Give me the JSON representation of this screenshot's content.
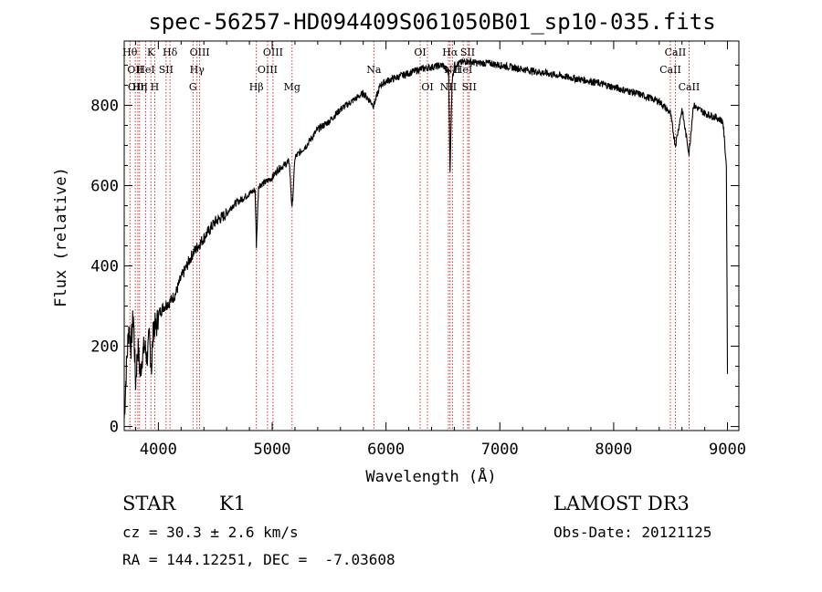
{
  "chart_data": {
    "type": "line",
    "title": "spec-56257-HD094409S061050B01_sp10-035.fits",
    "xlabel": "Wavelength (Å)",
    "ylabel": "Flux (relative)",
    "xlim": [
      3700,
      9100
    ],
    "ylim": [
      -10,
      960
    ],
    "xticks": [
      4000,
      5000,
      6000,
      7000,
      8000,
      9000
    ],
    "yticks": [
      0,
      200,
      400,
      600,
      800
    ],
    "grid": false,
    "legend": "none",
    "series": [
      {
        "x": [
          3700,
          3720,
          3740,
          3760,
          3780,
          3800,
          3820,
          3840,
          3860,
          3880,
          3900,
          3920,
          3940,
          3960,
          3980,
          4000,
          4050,
          4100,
          4150,
          4200,
          4250,
          4300,
          4350,
          4400,
          4450,
          4500,
          4550,
          4600,
          4650,
          4700,
          4750,
          4800,
          4850,
          4861,
          4880,
          4950,
          5000,
          5050,
          5100,
          5150,
          5175,
          5200,
          5300,
          5400,
          5500,
          5600,
          5700,
          5800,
          5893,
          5950,
          6000,
          6100,
          6200,
          6300,
          6400,
          6500,
          6550,
          6563,
          6580,
          6600,
          6650,
          6700,
          6800,
          6900,
          7000,
          7200,
          7400,
          7600,
          7800,
          8000,
          8200,
          8400,
          8498,
          8542,
          8600,
          8662,
          8700,
          8800,
          8900,
          8960,
          8990,
          9000
        ],
        "values": [
          20,
          150,
          250,
          200,
          280,
          110,
          200,
          130,
          180,
          200,
          170,
          220,
          150,
          260,
          240,
          280,
          300,
          310,
          330,
          370,
          400,
          430,
          450,
          470,
          490,
          510,
          520,
          530,
          550,
          560,
          570,
          580,
          590,
          450,
          600,
          610,
          620,
          640,
          650,
          660,
          540,
          670,
          700,
          740,
          760,
          790,
          810,
          830,
          800,
          850,
          860,
          870,
          880,
          890,
          895,
          900,
          880,
          640,
          860,
          900,
          905,
          910,
          905,
          905,
          900,
          890,
          880,
          870,
          860,
          845,
          830,
          810,
          780,
          700,
          790,
          680,
          800,
          780,
          770,
          760,
          650,
          140
        ],
        "color": "#000000"
      }
    ],
    "lines": [
      {
        "wave": 3750,
        "label": "Hθ",
        "row": 0
      },
      {
        "wave": 3797,
        "label": "OII",
        "row": 1
      },
      {
        "wave": 3820,
        "label": "OIII",
        "row": 2
      },
      {
        "wave": 3835,
        "label": "Hη",
        "row": 2
      },
      {
        "wave": 3889,
        "label": "HeI",
        "row": 1
      },
      {
        "wave": 3934,
        "label": "K",
        "row": 0
      },
      {
        "wave": 3968,
        "label": "H",
        "row": 2
      },
      {
        "wave": 4068,
        "label": "SII",
        "row": 1
      },
      {
        "wave": 4102,
        "label": "Hδ",
        "row": 0
      },
      {
        "wave": 4304,
        "label": "G",
        "row": 2
      },
      {
        "wave": 4340,
        "label": "Hγ",
        "row": 1
      },
      {
        "wave": 4363,
        "label": "OIII",
        "row": 0
      },
      {
        "wave": 4861,
        "label": "Hβ",
        "row": 2
      },
      {
        "wave": 4959,
        "label": "OIII",
        "row": 1
      },
      {
        "wave": 5007,
        "label": "OIII",
        "row": 0
      },
      {
        "wave": 5175,
        "label": "Mg",
        "row": 2
      },
      {
        "wave": 5893,
        "label": "Na",
        "row": 1
      },
      {
        "wave": 6300,
        "label": "OI",
        "row": 0
      },
      {
        "wave": 6364,
        "label": "OI",
        "row": 2
      },
      {
        "wave": 6548,
        "label": "NII",
        "row": 2
      },
      {
        "wave": 6563,
        "label": "Hα",
        "row": 0
      },
      {
        "wave": 6583,
        "label": "NII",
        "row": 1
      },
      {
        "wave": 6678,
        "label": "HeI",
        "row": 1
      },
      {
        "wave": 6717,
        "label": "SII",
        "row": 0
      },
      {
        "wave": 6731,
        "label": "SII",
        "row": 2
      },
      {
        "wave": 8498,
        "label": "CaII",
        "row": 1
      },
      {
        "wave": 8542,
        "label": "CaII",
        "row": 0
      },
      {
        "wave": 8662,
        "label": "CaII",
        "row": 2
      }
    ],
    "line_color": "#cc0000"
  },
  "info": {
    "class": "STAR",
    "subclass": "K1",
    "survey": "LAMOST DR3",
    "cz": "cz = 30.3 ± 2.6 km/s",
    "obs_date": "Obs-Date: 20121125",
    "radec": "RA = 144.12251, DEC =  -7.03608"
  }
}
